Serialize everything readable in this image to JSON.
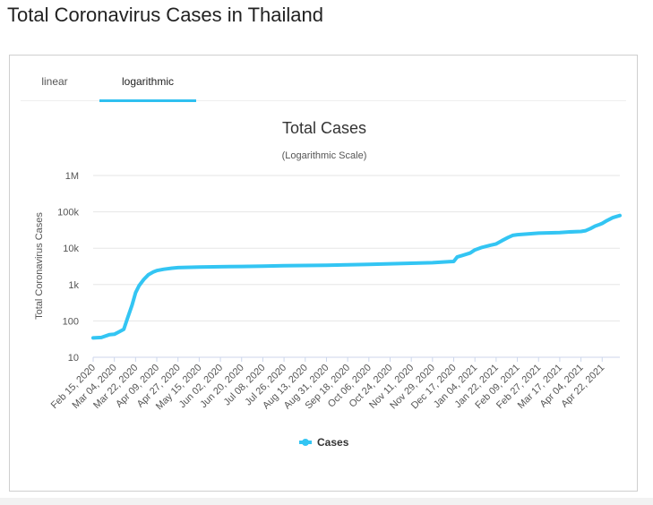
{
  "page": {
    "title": "Total Coronavirus Cases in Thailand"
  },
  "tabs": [
    {
      "label": "linear",
      "active": false
    },
    {
      "label": "logarithmic",
      "active": true
    }
  ],
  "colors": {
    "series": "#33c5f3",
    "accent": "#2fc0f0",
    "grid": "#e6e6e6"
  },
  "chart_data": {
    "type": "line",
    "title": "Total Cases",
    "subtitle": "(Logarithmic Scale)",
    "ylabel": "Total Coronavirus Cases",
    "xlabel": "",
    "yscale": "log",
    "ylim": [
      10,
      1000000
    ],
    "y_ticks": [
      {
        "value": 10,
        "label": "10"
      },
      {
        "value": 100,
        "label": "100"
      },
      {
        "value": 1000,
        "label": "1k"
      },
      {
        "value": 10000,
        "label": "10k"
      },
      {
        "value": 100000,
        "label": "100k"
      },
      {
        "value": 1000000,
        "label": "1M"
      }
    ],
    "x_tick_labels": [
      "Feb 15, 2020",
      "Mar 04, 2020",
      "Mar 22, 2020",
      "Apr 09, 2020",
      "Apr 27, 2020",
      "May 15, 2020",
      "Jun 02, 2020",
      "Jun 20, 2020",
      "Jul 08, 2020",
      "Jul 26, 2020",
      "Aug 13, 2020",
      "Aug 31, 2020",
      "Sep 18, 2020",
      "Oct 06, 2020",
      "Oct 24, 2020",
      "Nov 11, 2020",
      "Nov 29, 2020",
      "Dec 17, 2020",
      "Jan 04, 2021",
      "Jan 22, 2021",
      "Feb 09, 2021",
      "Feb 27, 2021",
      "Mar 17, 2021",
      "Apr 04, 2021",
      "Apr 22, 2021"
    ],
    "legend": {
      "position": "bottom-center"
    },
    "grid": true,
    "series": [
      {
        "name": "Cases",
        "points": [
          [
            "Feb 15, 2020",
            34
          ],
          [
            "Feb 22, 2020",
            35
          ],
          [
            "Feb 29, 2020",
            42
          ],
          [
            "Mar 04, 2020",
            43
          ],
          [
            "Mar 08, 2020",
            50
          ],
          [
            "Mar 12, 2020",
            59
          ],
          [
            "Mar 15, 2020",
            114
          ],
          [
            "Mar 19, 2020",
            272
          ],
          [
            "Mar 22, 2020",
            599
          ],
          [
            "Mar 25, 2020",
            934
          ],
          [
            "Mar 29, 2020",
            1388
          ],
          [
            "Apr 02, 2020",
            1875
          ],
          [
            "Apr 06, 2020",
            2220
          ],
          [
            "Apr 09, 2020",
            2423
          ],
          [
            "Apr 15, 2020",
            2643
          ],
          [
            "Apr 22, 2020",
            2826
          ],
          [
            "Apr 27, 2020",
            2922
          ],
          [
            "May 15, 2020",
            3025
          ],
          [
            "Jun 02, 2020",
            3083
          ],
          [
            "Jun 20, 2020",
            3146
          ],
          [
            "Jul 08, 2020",
            3197
          ],
          [
            "Jul 26, 2020",
            3291
          ],
          [
            "Aug 13, 2020",
            3351
          ],
          [
            "Aug 31, 2020",
            3411
          ],
          [
            "Sep 18, 2020",
            3497
          ],
          [
            "Oct 06, 2020",
            3590
          ],
          [
            "Oct 24, 2020",
            3726
          ],
          [
            "Nov 11, 2020",
            3852
          ],
          [
            "Nov 29, 2020",
            3998
          ],
          [
            "Dec 13, 2020",
            4246
          ],
          [
            "Dec 17, 2020",
            4331
          ],
          [
            "Dec 20, 2020",
            5762
          ],
          [
            "Dec 24, 2020",
            6285
          ],
          [
            "Dec 31, 2020",
            7379
          ],
          [
            "Jan 04, 2021",
            8966
          ],
          [
            "Jan 10, 2021",
            10547
          ],
          [
            "Jan 17, 2021",
            12054
          ],
          [
            "Jan 22, 2021",
            13104
          ],
          [
            "Jan 27, 2021",
            16221
          ],
          [
            "Feb 01, 2021",
            19618
          ],
          [
            "Feb 05, 2021",
            22453
          ],
          [
            "Feb 09, 2021",
            23557
          ],
          [
            "Feb 18, 2021",
            24714
          ],
          [
            "Feb 27, 2021",
            25951
          ],
          [
            "Mar 17, 2021",
            26926
          ],
          [
            "Mar 24, 2021",
            27918
          ],
          [
            "Apr 04, 2021",
            28889
          ],
          [
            "Apr 08, 2021",
            30310
          ],
          [
            "Apr 12, 2021",
            34575
          ],
          [
            "Apr 16, 2021",
            40585
          ],
          [
            "Apr 20, 2021",
            45185
          ],
          [
            "Apr 22, 2021",
            48113
          ],
          [
            "Apr 26, 2021",
            57508
          ],
          [
            "May 01, 2021",
            68984
          ],
          [
            "May 07, 2021",
            79321
          ]
        ]
      }
    ]
  }
}
